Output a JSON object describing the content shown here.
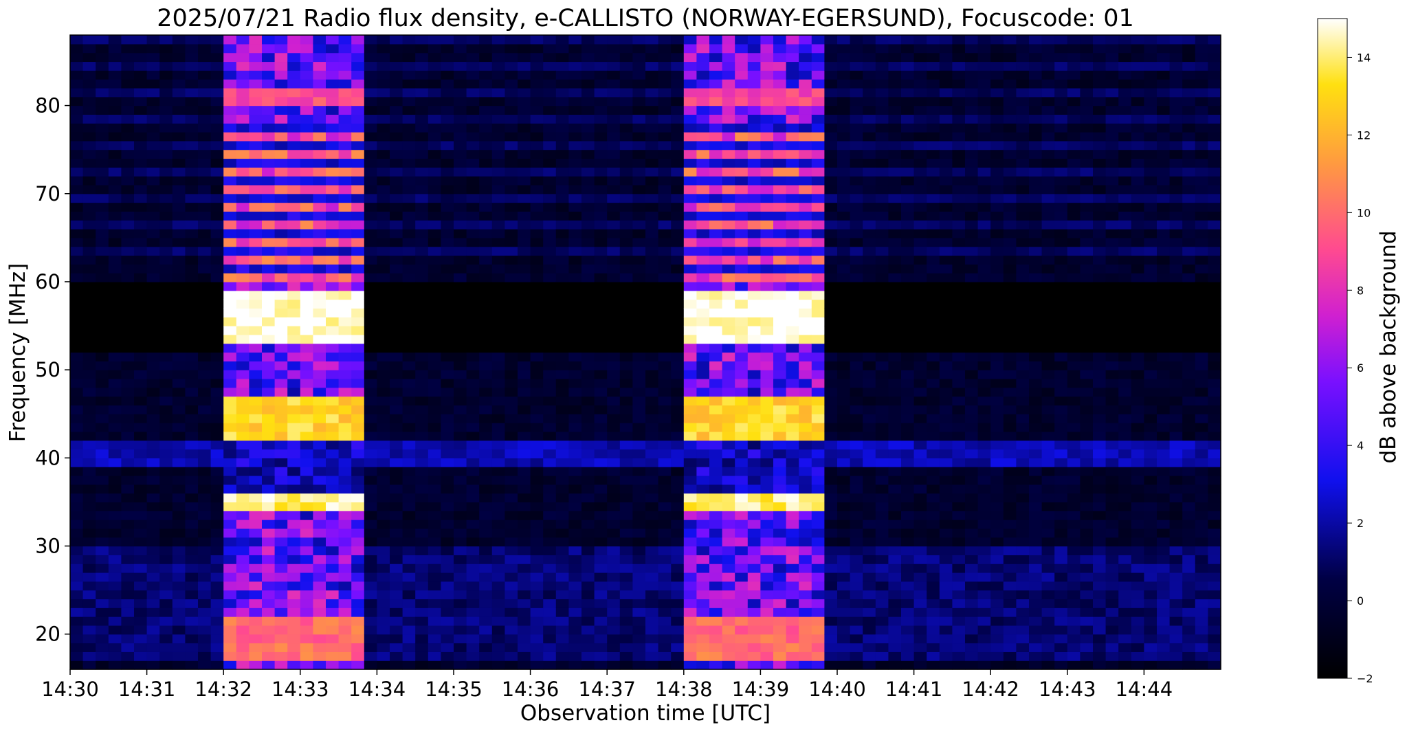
{
  "chart_data": {
    "type": "heatmap",
    "title": "2025/07/21  Radio flux density, e-CALLISTO (NORWAY-EGERSUND), Focuscode: 01",
    "xlabel": "Observation time [UTC]",
    "ylabel": "Frequency [MHz]",
    "colorbar_label": "dB above background",
    "colormap": "gnuplot2",
    "x_range_minutes": [
      0,
      15
    ],
    "x_ticks": [
      "14:30",
      "14:31",
      "14:32",
      "14:33",
      "14:34",
      "14:35",
      "14:36",
      "14:37",
      "14:38",
      "14:39",
      "14:40",
      "14:41",
      "14:42",
      "14:43",
      "14:44"
    ],
    "y_range_mhz": [
      16,
      88
    ],
    "y_ticks": [
      20,
      30,
      40,
      50,
      60,
      70,
      80
    ],
    "colorbar_range": [
      -2,
      15
    ],
    "colorbar_ticks": [
      -2,
      0,
      2,
      4,
      6,
      8,
      10,
      12,
      14
    ],
    "calibration_bursts": [
      {
        "start": "14:32:00",
        "end": "14:33:51",
        "peak_db": 15
      },
      {
        "start": "14:38:00",
        "end": "14:39:51",
        "peak_db": 15
      }
    ],
    "strong_bands_mhz": [
      {
        "from": 53,
        "to": 59,
        "db": 14
      },
      {
        "from": 42,
        "to": 47,
        "db": 12
      },
      {
        "from": 34,
        "to": 35.5,
        "db": 13
      },
      {
        "from": 17,
        "to": 22,
        "db": 9
      },
      {
        "from": 80,
        "to": 82,
        "db": 8
      }
    ],
    "background_bands_mhz": [
      {
        "from": 39.5,
        "to": 42,
        "db": 2.5
      },
      {
        "from": 17,
        "to": 30,
        "db": 1.5
      }
    ],
    "quiet_gap_mhz": [
      52,
      60
    ]
  }
}
